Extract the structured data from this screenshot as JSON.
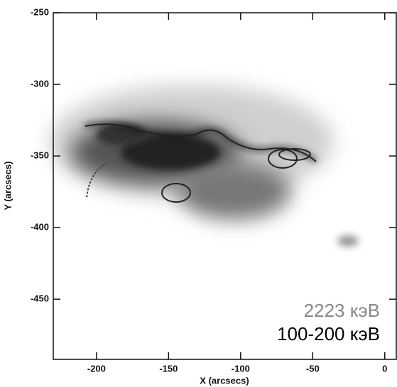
{
  "chart_data": {
    "type": "image",
    "xlabel": "X (arcsecs)",
    "ylabel": "Y (arcsecs)",
    "xlim": [
      -230,
      8
    ],
    "ylim": [
      -492,
      -250
    ],
    "xticks": [
      -200,
      -150,
      -100,
      -50,
      0
    ],
    "yticks": [
      -250,
      -300,
      -350,
      -400,
      -450
    ],
    "annotations": [
      "2223 кэВ",
      "100-200 кэВ"
    ]
  }
}
